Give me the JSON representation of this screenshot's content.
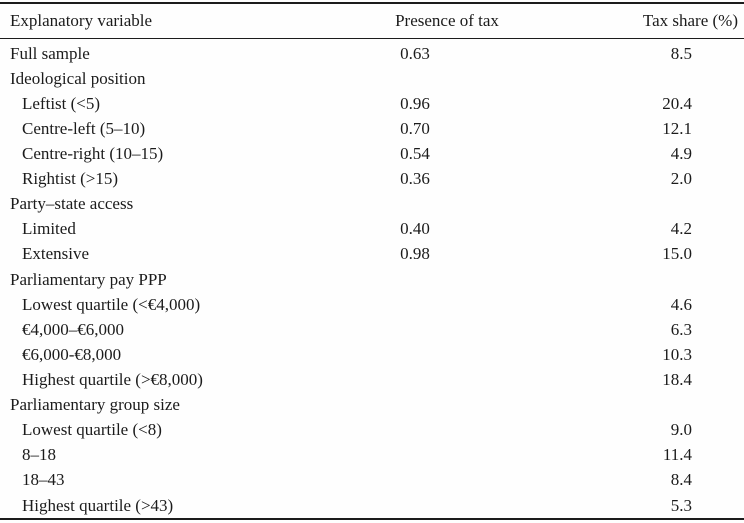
{
  "table": {
    "columns": [
      "Explanatory variable",
      "Presence of tax",
      "Tax share (%)"
    ],
    "rows": [
      {
        "label": "Full sample",
        "section": false,
        "indent": false,
        "presence": "0.63",
        "share": "8.5"
      },
      {
        "label": "Ideological position",
        "section": true,
        "indent": false,
        "presence": "",
        "share": ""
      },
      {
        "label": "Leftist (<5)",
        "section": false,
        "indent": true,
        "presence": "0.96",
        "share": "20.4"
      },
      {
        "label": "Centre-left (5–10)",
        "section": false,
        "indent": true,
        "presence": "0.70",
        "share": "12.1"
      },
      {
        "label": "Centre-right (10–15)",
        "section": false,
        "indent": true,
        "presence": "0.54",
        "share": "4.9"
      },
      {
        "label": "Rightist (>15)",
        "section": false,
        "indent": true,
        "presence": "0.36",
        "share": "2.0"
      },
      {
        "label": "Party–state access",
        "section": true,
        "indent": false,
        "presence": "",
        "share": ""
      },
      {
        "label": "Limited",
        "section": false,
        "indent": true,
        "presence": "0.40",
        "share": "4.2"
      },
      {
        "label": "Extensive",
        "section": false,
        "indent": true,
        "presence": "0.98",
        "share": "15.0"
      },
      {
        "label": "Parliamentary pay PPP",
        "section": true,
        "indent": false,
        "presence": "",
        "share": ""
      },
      {
        "label": "Lowest quartile (<€4,000)",
        "section": false,
        "indent": true,
        "presence": "",
        "share": "4.6"
      },
      {
        "label": "€4,000–€6,000",
        "section": false,
        "indent": true,
        "presence": "",
        "share": "6.3"
      },
      {
        "label": "€6,000-€8,000",
        "section": false,
        "indent": true,
        "presence": "",
        "share": "10.3"
      },
      {
        "label": "Highest quartile (>€8,000)",
        "section": false,
        "indent": true,
        "presence": "",
        "share": "18.4"
      },
      {
        "label": "Parliamentary group size",
        "section": true,
        "indent": false,
        "presence": "",
        "share": ""
      },
      {
        "label": "Lowest quartile (<8)",
        "section": false,
        "indent": true,
        "presence": "",
        "share": "9.0"
      },
      {
        "label": "8–18",
        "section": false,
        "indent": true,
        "presence": "",
        "share": "11.4"
      },
      {
        "label": "18–43",
        "section": false,
        "indent": true,
        "presence": "",
        "share": "8.4"
      },
      {
        "label": "Highest quartile (>43)",
        "section": false,
        "indent": true,
        "presence": "",
        "share": "5.3"
      }
    ]
  }
}
